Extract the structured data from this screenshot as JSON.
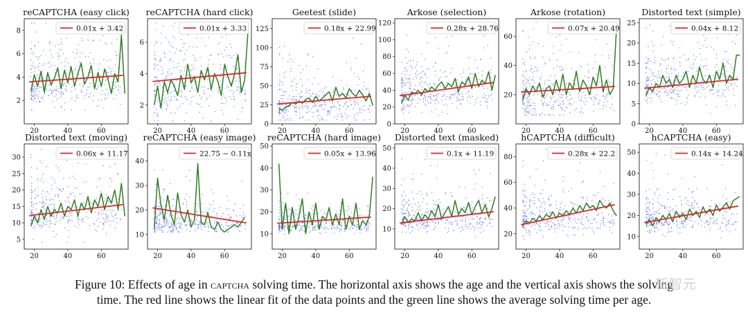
{
  "caption": {
    "line1_prefix": "Figure 10: Effects of age in ",
    "line1_sc": "captcha",
    "line1_suffix": " solving time. The horizontal axis shows the age and the vertical axis shows the solving",
    "line2": "time. The red line shows the linear fit of the data points and the green line shows the average solving time per age."
  },
  "watermark": "新智元",
  "colors": {
    "scatter": "#4f5ff0",
    "fit": "#d62728",
    "avg": "#2f7d20",
    "axis": "#222222"
  },
  "chart_data": [
    {
      "type": "scatter",
      "title": "reCAPTCHA (easy click)",
      "legend": "0.01x + 3.42",
      "xlim": [
        14,
        76
      ],
      "ylim": [
        0,
        9
      ],
      "xticks": [
        20,
        40,
        60
      ],
      "yticks": [
        2,
        4,
        6,
        8
      ],
      "fit": {
        "slope": 0.01,
        "intercept": 3.42
      },
      "avg": {
        "x": [
          18,
          20,
          22,
          24,
          26,
          28,
          30,
          32,
          34,
          36,
          38,
          40,
          42,
          44,
          46,
          48,
          50,
          52,
          54,
          56,
          58,
          60,
          62,
          64,
          66,
          68,
          70,
          72,
          74
        ],
        "y": [
          2.8,
          4.2,
          3.2,
          4.5,
          2.7,
          4.4,
          3.3,
          3.9,
          4.8,
          3.0,
          4.6,
          3.5,
          4.9,
          3.2,
          4.3,
          5.2,
          3.4,
          4.0,
          5.0,
          3.0,
          4.4,
          3.2,
          4.7,
          3.8,
          2.6,
          4.3,
          3.6,
          7.6,
          2.6
        ]
      },
      "scatter": {
        "y_center": 3.4,
        "y_spread": 1.6,
        "y_min": 1.2,
        "y_max": 8.6
      }
    },
    {
      "type": "scatter",
      "title": "reCAPTCHA (hard click)",
      "legend": "0.01x + 3.33",
      "xlim": [
        14,
        76
      ],
      "ylim": [
        0.8,
        7.5
      ],
      "xticks": [
        20,
        40,
        60
      ],
      "yticks": [
        2,
        4,
        6
      ],
      "fit": {
        "slope": 0.01,
        "intercept": 3.33
      },
      "avg": {
        "x": [
          18,
          20,
          22,
          24,
          26,
          28,
          30,
          32,
          34,
          36,
          38,
          40,
          42,
          44,
          46,
          48,
          50,
          52,
          54,
          56,
          58,
          60,
          62,
          64,
          66,
          68,
          70,
          72,
          74
        ],
        "y": [
          2.0,
          3.2,
          1.8,
          3.5,
          2.8,
          3.6,
          3.2,
          2.6,
          3.9,
          3.0,
          4.6,
          3.4,
          3.8,
          2.8,
          4.2,
          3.6,
          4.4,
          3.0,
          4.0,
          3.5,
          2.6,
          4.6,
          3.8,
          3.2,
          4.0,
          5.2,
          2.8,
          3.6,
          6.8
        ]
      },
      "scatter": {
        "y_center": 3.2,
        "y_spread": 1.5,
        "y_min": 1.0,
        "y_max": 7.2
      }
    },
    {
      "type": "scatter",
      "title": "Geetest (slide)",
      "legend": "0.18x + 22.99",
      "xlim": [
        14,
        76
      ],
      "ylim": [
        0,
        138
      ],
      "xticks": [
        20,
        40,
        60
      ],
      "yticks": [
        0,
        25,
        50,
        75,
        100,
        125
      ],
      "fit": {
        "slope": 0.18,
        "intercept": 22.99
      },
      "avg": {
        "x": [
          18,
          20,
          22,
          24,
          26,
          28,
          30,
          32,
          34,
          36,
          38,
          40,
          42,
          44,
          46,
          48,
          50,
          52,
          54,
          56,
          58,
          60,
          62,
          64,
          66,
          68,
          70,
          72,
          74
        ],
        "y": [
          20,
          18,
          22,
          24,
          28,
          26,
          30,
          27,
          32,
          34,
          28,
          36,
          30,
          34,
          38,
          42,
          30,
          48,
          36,
          40,
          34,
          46,
          40,
          36,
          44,
          38,
          30,
          40,
          24
        ]
      },
      "scatter": {
        "y_center": 25,
        "y_spread": 18,
        "y_min": 5,
        "y_max": 130
      }
    },
    {
      "type": "scatter",
      "title": "Arkose (selection)",
      "legend": "0.28x + 28.76",
      "xlim": [
        14,
        76
      ],
      "ylim": [
        0,
        125
      ],
      "xticks": [
        20,
        40,
        60
      ],
      "yticks": [
        0,
        20,
        40,
        60,
        80,
        100,
        120
      ],
      "fit": {
        "slope": 0.28,
        "intercept": 28.76
      },
      "avg": {
        "x": [
          18,
          20,
          22,
          24,
          26,
          28,
          30,
          32,
          34,
          36,
          38,
          40,
          42,
          44,
          46,
          48,
          50,
          52,
          54,
          56,
          58,
          60,
          62,
          64,
          66,
          68,
          70,
          72,
          74
        ],
        "y": [
          24,
          34,
          28,
          38,
          36,
          40,
          34,
          42,
          38,
          44,
          40,
          46,
          50,
          42,
          48,
          44,
          54,
          38,
          50,
          46,
          56,
          42,
          60,
          44,
          52,
          48,
          62,
          40,
          58
        ]
      },
      "scatter": {
        "y_center": 36,
        "y_spread": 18,
        "y_min": 10,
        "y_max": 118
      }
    },
    {
      "type": "scatter",
      "title": "Arkose (rotation)",
      "legend": "0.07x + 20.49",
      "xlim": [
        14,
        76
      ],
      "ylim": [
        0,
        72
      ],
      "xticks": [
        20,
        40,
        60
      ],
      "yticks": [
        20,
        40,
        60
      ],
      "fit": {
        "slope": 0.07,
        "intercept": 20.49
      },
      "avg": {
        "x": [
          18,
          20,
          22,
          24,
          26,
          28,
          30,
          32,
          34,
          36,
          38,
          40,
          42,
          44,
          46,
          48,
          50,
          52,
          54,
          56,
          58,
          60,
          62,
          64,
          66,
          68,
          70,
          72,
          74
        ],
        "y": [
          16,
          24,
          20,
          26,
          22,
          28,
          18,
          24,
          26,
          20,
          30,
          22,
          34,
          20,
          28,
          24,
          36,
          22,
          30,
          26,
          20,
          32,
          26,
          40,
          22,
          30,
          20,
          24,
          66
        ]
      },
      "scatter": {
        "y_center": 20,
        "y_spread": 12,
        "y_min": 6,
        "y_max": 70
      }
    },
    {
      "type": "scatter",
      "title": "Distorted text (simple)",
      "legend": "0.04x + 8.12",
      "xlim": [
        14,
        76
      ],
      "ylim": [
        0,
        26
      ],
      "xticks": [
        20,
        40,
        60
      ],
      "yticks": [
        0,
        5,
        10,
        15,
        20,
        25
      ],
      "fit": {
        "slope": 0.04,
        "intercept": 8.12
      },
      "avg": {
        "x": [
          18,
          20,
          22,
          24,
          26,
          28,
          30,
          32,
          34,
          36,
          38,
          40,
          42,
          44,
          46,
          48,
          50,
          52,
          54,
          56,
          58,
          60,
          62,
          64,
          66,
          68,
          70,
          72,
          74
        ],
        "y": [
          7,
          9,
          8,
          10,
          9,
          12,
          10,
          11,
          9,
          12,
          10,
          11,
          13,
          9,
          12,
          10,
          14,
          11,
          10,
          12,
          9,
          13,
          11,
          15,
          10,
          12,
          11,
          17,
          17
        ]
      },
      "scatter": {
        "y_center": 10,
        "y_spread": 4,
        "y_min": 2,
        "y_max": 25
      }
    },
    {
      "type": "scatter",
      "title": "Distorted text (moving)",
      "legend": "0.06x + 11.17",
      "xlim": [
        14,
        76
      ],
      "ylim": [
        2,
        34
      ],
      "xticks": [
        20,
        40,
        60
      ],
      "yticks": [
        5,
        10,
        15,
        20,
        25,
        30
      ],
      "fit": {
        "slope": 0.06,
        "intercept": 11.17
      },
      "avg": {
        "x": [
          18,
          20,
          22,
          24,
          26,
          28,
          30,
          32,
          34,
          36,
          38,
          40,
          42,
          44,
          46,
          48,
          50,
          52,
          54,
          56,
          58,
          60,
          62,
          64,
          66,
          68,
          70,
          72,
          74
        ],
        "y": [
          9,
          12,
          10,
          14,
          11,
          15,
          12,
          14,
          13,
          16,
          12,
          15,
          14,
          17,
          12,
          16,
          14,
          18,
          13,
          17,
          15,
          19,
          14,
          18,
          16,
          20,
          14,
          22,
          12
        ]
      },
      "scatter": {
        "y_center": 13,
        "y_spread": 5,
        "y_min": 4,
        "y_max": 33
      }
    },
    {
      "type": "scatter",
      "title": "reCAPTCHA (easy image)",
      "legend": "22.75 − 0.11x",
      "xlim": [
        14,
        76
      ],
      "ylim": [
        4,
        47
      ],
      "xticks": [
        20,
        40,
        60
      ],
      "yticks": [
        10,
        20,
        30,
        40
      ],
      "fit": {
        "slope": -0.11,
        "intercept": 22.75
      },
      "avg": {
        "x": [
          18,
          20,
          22,
          24,
          26,
          28,
          30,
          32,
          34,
          36,
          38,
          40,
          42,
          44,
          46,
          48,
          50,
          52,
          54,
          56,
          58,
          60,
          62,
          64,
          66,
          68,
          70,
          72
        ],
        "y": [
          12,
          33,
          22,
          16,
          26,
          18,
          14,
          27,
          18,
          15,
          20,
          13,
          16,
          39,
          15,
          14,
          19,
          13,
          12,
          15,
          12,
          11,
          12,
          13,
          14,
          13,
          15,
          17
        ]
      },
      "scatter": {
        "y_center": 15,
        "y_spread": 4,
        "y_min": 11,
        "y_max": 38
      }
    },
    {
      "type": "scatter",
      "title": "reCAPTCHA (hard image)",
      "legend": "0.05x + 13.96",
      "xlim": [
        14,
        76
      ],
      "ylim": [
        3,
        51
      ],
      "xticks": [
        20,
        40,
        60
      ],
      "yticks": [
        10,
        20,
        30,
        40,
        50
      ],
      "fit": {
        "slope": 0.05,
        "intercept": 13.96
      },
      "avg": {
        "x": [
          18,
          20,
          22,
          24,
          26,
          28,
          30,
          32,
          34,
          36,
          38,
          40,
          42,
          44,
          46,
          48,
          50,
          52,
          54,
          56,
          58,
          60,
          62,
          64,
          66,
          68,
          70,
          72,
          74
        ],
        "y": [
          42,
          12,
          24,
          10,
          22,
          12,
          18,
          26,
          10,
          20,
          14,
          24,
          12,
          18,
          16,
          22,
          14,
          19,
          14,
          26,
          12,
          18,
          14,
          24,
          12,
          16,
          14,
          18,
          36
        ]
      },
      "scatter": {
        "y_center": 14,
        "y_spread": 3,
        "y_min": 9,
        "y_max": 30
      }
    },
    {
      "type": "scatter",
      "title": "Distorted text (masked)",
      "legend": "0.1x + 11.19",
      "xlim": [
        14,
        76
      ],
      "ylim": [
        0,
        52
      ],
      "xticks": [
        20,
        40,
        60
      ],
      "yticks": [
        10,
        20,
        30,
        40,
        50
      ],
      "fit": {
        "slope": 0.1,
        "intercept": 11.19
      },
      "avg": {
        "x": [
          18,
          20,
          22,
          24,
          26,
          28,
          30,
          32,
          34,
          36,
          38,
          40,
          42,
          44,
          46,
          48,
          50,
          52,
          54,
          56,
          58,
          60,
          62,
          64,
          66,
          68,
          70,
          72,
          74
        ],
        "y": [
          12,
          16,
          13,
          15,
          14,
          18,
          14,
          17,
          15,
          19,
          16,
          22,
          15,
          18,
          21,
          16,
          24,
          17,
          20,
          18,
          23,
          17,
          21,
          24,
          18,
          22,
          16,
          20,
          26
        ]
      },
      "scatter": {
        "y_center": 15,
        "y_spread": 5,
        "y_min": 5,
        "y_max": 48
      }
    },
    {
      "type": "scatter",
      "title": "hCAPTCHA (difficult)",
      "legend": "0.28x + 22.2",
      "xlim": [
        14,
        76
      ],
      "ylim": [
        8,
        90
      ],
      "xticks": [
        20,
        40,
        60
      ],
      "yticks": [
        20,
        40,
        60,
        80
      ],
      "fit": {
        "slope": 0.28,
        "intercept": 22.2
      },
      "avg": {
        "x": [
          18,
          20,
          22,
          24,
          26,
          28,
          30,
          32,
          34,
          36,
          38,
          40,
          42,
          44,
          46,
          48,
          50,
          52,
          54,
          56,
          58,
          60,
          62,
          64,
          66,
          68,
          70,
          72,
          74
        ],
        "y": [
          26,
          30,
          28,
          32,
          30,
          34,
          31,
          35,
          33,
          37,
          32,
          36,
          34,
          38,
          35,
          40,
          36,
          42,
          38,
          44,
          40,
          42,
          38,
          46,
          42,
          40,
          44,
          38,
          34
        ]
      },
      "scatter": {
        "y_center": 32,
        "y_spread": 9,
        "y_min": 12,
        "y_max": 86
      }
    },
    {
      "type": "scatter",
      "title": "hCAPTCHA (easy)",
      "legend": "0.14x + 14.24",
      "xlim": [
        14,
        76
      ],
      "ylim": [
        4,
        54
      ],
      "xticks": [
        20,
        40,
        60
      ],
      "yticks": [
        10,
        20,
        30,
        40,
        50
      ],
      "fit": {
        "slope": 0.14,
        "intercept": 14.24
      },
      "avg": {
        "x": [
          18,
          20,
          22,
          24,
          26,
          28,
          30,
          32,
          34,
          36,
          38,
          40,
          42,
          44,
          46,
          48,
          50,
          52,
          54,
          56,
          58,
          60,
          62,
          64,
          66,
          68,
          70,
          72,
          74
        ],
        "y": [
          16,
          18,
          15,
          19,
          17,
          20,
          18,
          21,
          17,
          22,
          19,
          21,
          18,
          23,
          20,
          22,
          19,
          24,
          21,
          23,
          20,
          25,
          22,
          24,
          26,
          23,
          27,
          28,
          29
        ]
      },
      "scatter": {
        "y_center": 18,
        "y_spread": 5,
        "y_min": 7,
        "y_max": 50
      }
    }
  ]
}
